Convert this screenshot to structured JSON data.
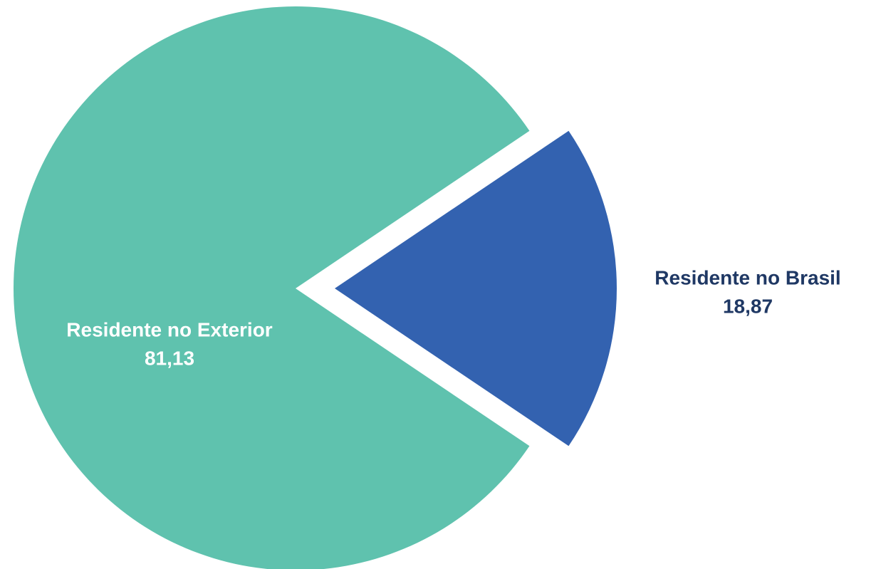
{
  "chart_data": {
    "type": "pie",
    "categories": [
      "Residente no Exterior",
      "Residente no Brasil"
    ],
    "values": [
      81.13,
      18.87
    ],
    "value_labels": [
      "81,13",
      "18,87"
    ],
    "colors": [
      "#5fc2ae",
      "#3362b0"
    ],
    "label_colors": [
      "#ffffff",
      "#1f3864"
    ]
  }
}
